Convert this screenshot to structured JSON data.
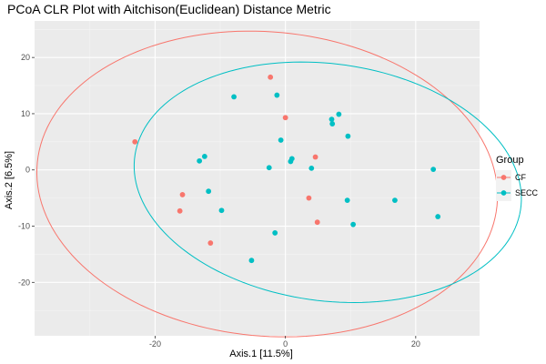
{
  "chart_data": {
    "type": "scatter",
    "title": "PCoA CLR Plot with Aitchison(Euclidean) Distance Metric",
    "xlabel": "Axis.1   [11.5%]",
    "ylabel": "Axis.2   [6.5%]",
    "xlim": [
      -38.5,
      29.8
    ],
    "ylim": [
      -29.5,
      26.5
    ],
    "xticks": [
      -20,
      0,
      20
    ],
    "yticks": [
      -20,
      -10,
      0,
      10,
      20
    ],
    "xtick_labels": [
      "-20",
      "0",
      "20"
    ],
    "ytick_labels": [
      "-20",
      "-10",
      "0",
      "10",
      "20"
    ],
    "grid": true,
    "legend": {
      "title": "Group",
      "position": "right"
    },
    "series": [
      {
        "name": "CF",
        "color": "#F8766D",
        "points": [
          [
            -2.3,
            16.5
          ],
          [
            0.0,
            9.3
          ],
          [
            -23.1,
            5.0
          ],
          [
            4.6,
            2.3
          ],
          [
            -15.8,
            -4.4
          ],
          [
            -16.2,
            -7.3
          ],
          [
            3.6,
            -5.0
          ],
          [
            4.9,
            -9.3
          ],
          [
            -11.5,
            -13.0
          ]
        ],
        "ellipse": {
          "cx": -2.8,
          "cy": -2.5,
          "rx": 35.5,
          "ry": 27.0,
          "angle": -8
        }
      },
      {
        "name": "SECC",
        "color": "#00BFC4",
        "points": [
          [
            -1.3,
            13.3
          ],
          [
            -7.9,
            13.0
          ],
          [
            8.2,
            9.9
          ],
          [
            7.1,
            9.0
          ],
          [
            7.2,
            8.2
          ],
          [
            9.6,
            6.0
          ],
          [
            -0.7,
            5.3
          ],
          [
            -12.4,
            2.4
          ],
          [
            -13.2,
            1.6
          ],
          [
            1.0,
            2.0
          ],
          [
            0.8,
            1.5
          ],
          [
            -2.5,
            0.4
          ],
          [
            4.0,
            0.3
          ],
          [
            22.7,
            0.1
          ],
          [
            -11.8,
            -3.8
          ],
          [
            9.5,
            -5.4
          ],
          [
            16.8,
            -5.4
          ],
          [
            -9.8,
            -7.2
          ],
          [
            23.4,
            -8.3
          ],
          [
            10.4,
            -9.7
          ],
          [
            -1.6,
            -11.2
          ],
          [
            -5.2,
            -16.1
          ]
        ],
        "ellipse": {
          "cx": 6.5,
          "cy": -2.2,
          "rx": 30.0,
          "ry": 21.0,
          "angle": -11
        }
      }
    ]
  }
}
